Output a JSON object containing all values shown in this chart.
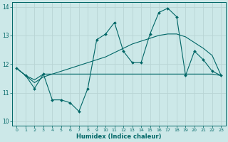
{
  "xlabel": "Humidex (Indice chaleur)",
  "bg_color": "#cce8e8",
  "grid_color": "#b8d4d4",
  "line_color": "#006666",
  "xlim": [
    -0.5,
    23.5
  ],
  "ylim": [
    9.85,
    14.15
  ],
  "yticks": [
    10,
    11,
    12,
    13,
    14
  ],
  "xticks": [
    0,
    1,
    2,
    3,
    4,
    5,
    6,
    7,
    8,
    9,
    10,
    11,
    12,
    13,
    14,
    15,
    16,
    17,
    18,
    19,
    20,
    21,
    22,
    23
  ],
  "line1_x": [
    0,
    1,
    2,
    3,
    4,
    5,
    6,
    7,
    8,
    9,
    10,
    11,
    12,
    13,
    14,
    15,
    16,
    17,
    18,
    19,
    20,
    21,
    22,
    23
  ],
  "line1_y": [
    11.85,
    11.6,
    11.15,
    11.65,
    10.75,
    10.75,
    10.65,
    10.35,
    11.15,
    12.85,
    13.05,
    13.45,
    12.45,
    12.05,
    12.05,
    13.05,
    13.8,
    13.95,
    13.65,
    11.6,
    12.45,
    12.15,
    11.75,
    11.6
  ],
  "line2_x": [
    0,
    1,
    2,
    3,
    4,
    5,
    6,
    7,
    8,
    9,
    10,
    11,
    12,
    13,
    14,
    15,
    16,
    17,
    18,
    19,
    20,
    21,
    22,
    23
  ],
  "line2_y": [
    11.85,
    11.6,
    11.45,
    11.65,
    11.65,
    11.65,
    11.65,
    11.65,
    11.65,
    11.65,
    11.65,
    11.65,
    11.65,
    11.65,
    11.65,
    11.65,
    11.65,
    11.65,
    11.65,
    11.65,
    11.65,
    11.65,
    11.65,
    11.6
  ],
  "line3_x": [
    0,
    1,
    2,
    3,
    4,
    5,
    6,
    7,
    8,
    9,
    10,
    11,
    12,
    13,
    14,
    15,
    16,
    17,
    18,
    19,
    20,
    21,
    22,
    23
  ],
  "line3_y": [
    11.85,
    11.6,
    11.35,
    11.55,
    11.65,
    11.75,
    11.85,
    11.95,
    12.05,
    12.15,
    12.25,
    12.4,
    12.55,
    12.7,
    12.8,
    12.9,
    13.0,
    13.05,
    13.05,
    12.95,
    12.75,
    12.55,
    12.3,
    11.6
  ]
}
